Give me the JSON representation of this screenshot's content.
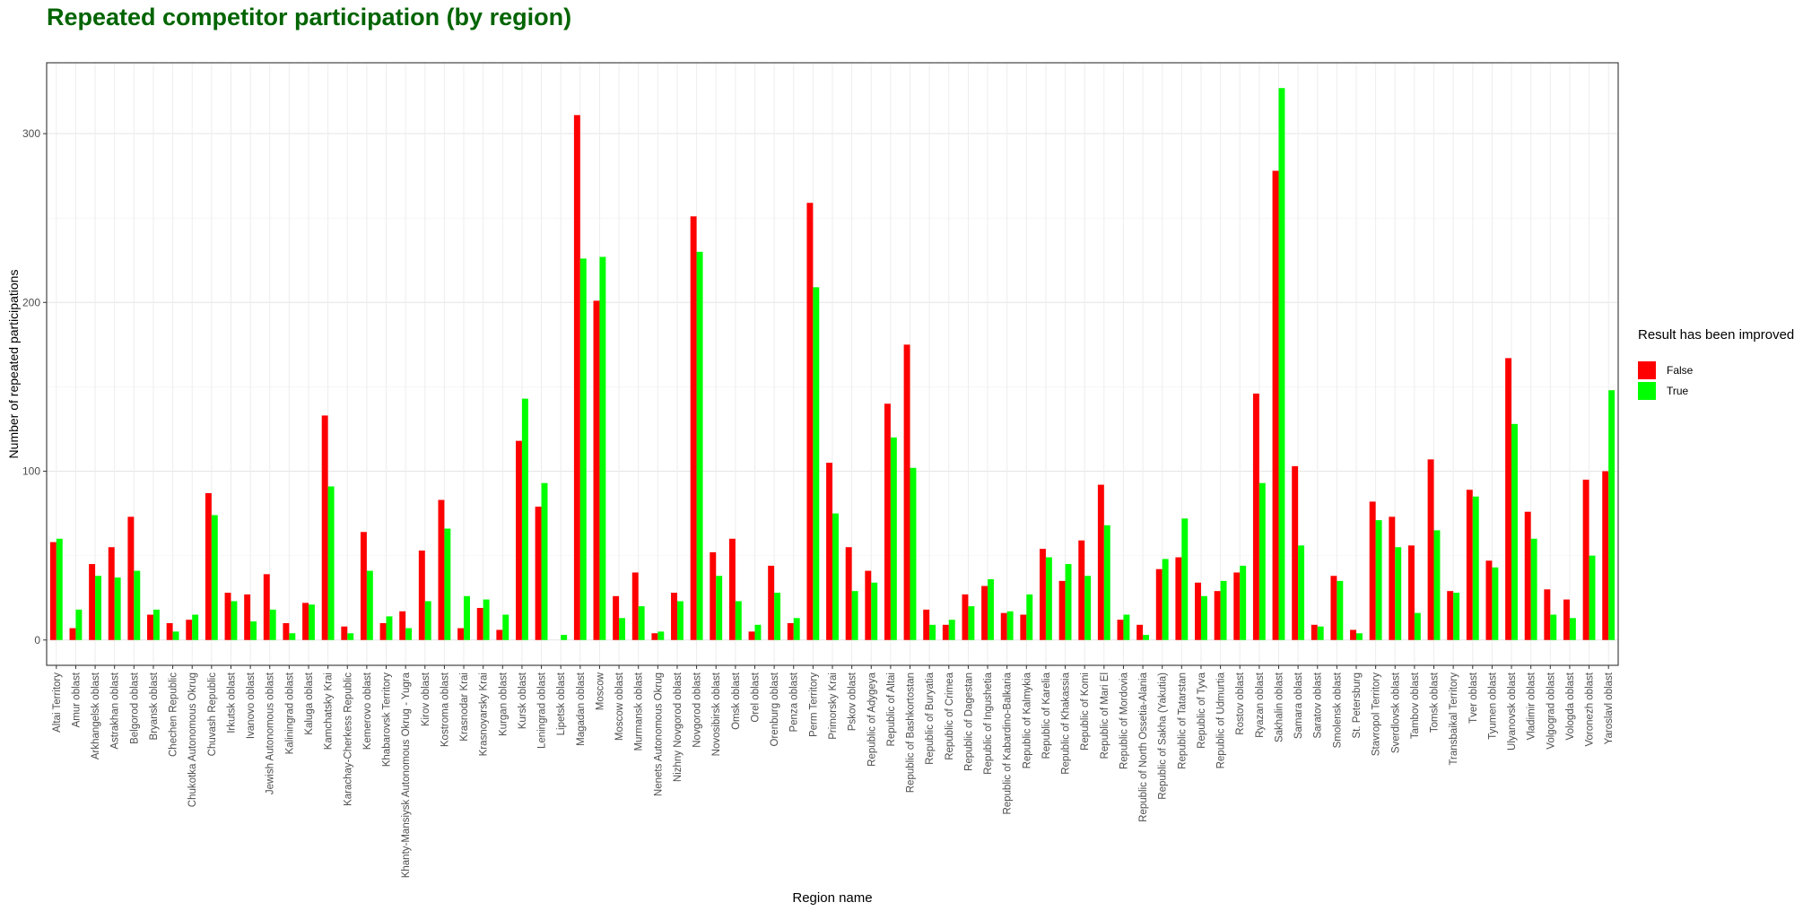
{
  "chart_data": {
    "type": "bar",
    "title": "Repeated competitor participation (by region)",
    "xlabel": "Region name",
    "ylabel": "Number of repeated participations",
    "ylim": [
      -15,
      342
    ],
    "yticks": [
      0,
      100,
      200,
      300
    ],
    "grid": true,
    "legend": {
      "title": "Result has been improved",
      "placement": "right"
    },
    "categories": [
      "Altai Territory",
      "Amur oblast",
      "Arkhangelsk oblast",
      "Astrakhan oblast",
      "Belgorod oblast",
      "Bryansk oblast",
      "Chechen Republic",
      "Chukotka Autonomous Okrug",
      "Chuvash Republic",
      "Irkutsk oblast",
      "Ivanovo oblast",
      "Jewish Autonomous oblast",
      "Kaliningrad oblast",
      "Kaluga oblast",
      "Kamchatsky Krai",
      "Karachay-Cherkess Republic",
      "Kemerovo oblast",
      "Khabarovsk Territory",
      "Khanty-Mansiysk Autonomous Okrug - Yugra",
      "Kirov oblast",
      "Kostroma oblast",
      "Krasnodar Krai",
      "Krasnoyarsky Krai",
      "Kurgan oblast",
      "Kursk oblast",
      "Leningrad oblast",
      "Lipetsk oblast",
      "Magadan oblast",
      "Moscow",
      "Moscow oblast",
      "Murmansk oblast",
      "Nenets Autonomous Okrug",
      "Nizhny Novgorod oblast",
      "Novgorod oblast",
      "Novosibirsk oblast",
      "Omsk oblast",
      "Orel oblast",
      "Orenburg oblast",
      "Penza oblast",
      "Perm Territory",
      "Primorsky Krai",
      "Pskov oblast",
      "Republic of Adygeya",
      "Republic of Altai",
      "Republic of Bashkortostan",
      "Republic of Buryatia",
      "Republic of Crimea",
      "Republic of Dagestan",
      "Republic of Ingushetia",
      "Republic of Kabardino-Balkaria",
      "Republic of Kalmykia",
      "Republic of Karelia",
      "Republic of Khakassia",
      "Republic of Komi",
      "Republic of Mari El",
      "Republic of Mordovia",
      "Republic of North Ossetia-Alania",
      "Republic of Sakha (Yakutia)",
      "Republic of Tatarstan",
      "Republic of Tyva",
      "Republic of Udmurtia",
      "Rostov oblast",
      "Ryazan oblast",
      "Sakhalin oblast",
      "Samara oblast",
      "Saratov oblast",
      "Smolensk oblast",
      "St. Petersburg",
      "Stavropol Territory",
      "Sverdlovsk oblast",
      "Tambov oblast",
      "Tomsk oblast",
      "Transbaikal Territory",
      "Tver oblast",
      "Tyumen oblast",
      "Ulyanovsk oblast",
      "Vladimir oblast",
      "Volgograd oblast",
      "Vologda oblast",
      "Voronezh oblast",
      "Yaroslavl oblast"
    ],
    "series": [
      {
        "name": "False",
        "color": "#ff0000",
        "values": [
          58,
          7,
          45,
          55,
          73,
          15,
          10,
          12,
          87,
          28,
          27,
          39,
          10,
          22,
          133,
          8,
          64,
          10,
          17,
          53,
          83,
          7,
          19,
          6,
          118,
          79,
          0,
          311,
          201,
          26,
          40,
          4,
          28,
          251,
          52,
          60,
          5,
          44,
          10,
          259,
          105,
          55,
          41,
          140,
          175,
          18,
          9,
          27,
          32,
          16,
          15,
          54,
          35,
          59,
          92,
          12,
          9,
          42,
          49,
          34,
          29,
          40,
          146,
          278,
          103,
          9,
          38,
          6,
          82,
          73,
          56,
          107,
          29,
          89,
          47,
          167,
          76,
          30,
          24,
          95,
          100
        ]
      },
      {
        "name": "True",
        "color": "#00ff00",
        "values": [
          60,
          18,
          38,
          37,
          41,
          18,
          5,
          15,
          74,
          23,
          11,
          18,
          4,
          21,
          91,
          4,
          41,
          14,
          7,
          23,
          66,
          26,
          24,
          15,
          143,
          93,
          3,
          226,
          227,
          13,
          20,
          5,
          23,
          230,
          38,
          23,
          9,
          28,
          13,
          209,
          75,
          29,
          34,
          120,
          102,
          9,
          12,
          20,
          36,
          17,
          27,
          49,
          45,
          38,
          68,
          15,
          3,
          48,
          72,
          26,
          35,
          44,
          93,
          327,
          56,
          8,
          35,
          4,
          71,
          55,
          16,
          65,
          28,
          85,
          43,
          128,
          60,
          15,
          13,
          50,
          148
        ]
      }
    ]
  }
}
